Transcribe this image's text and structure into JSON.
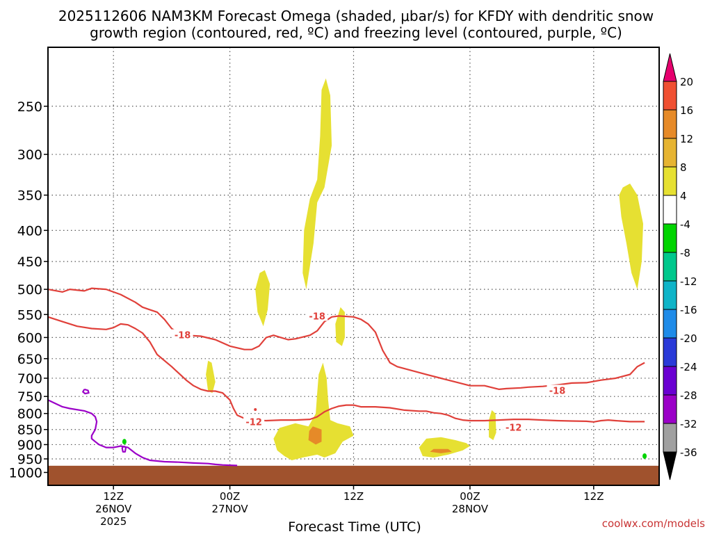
{
  "chart_data": {
    "type": "heatmap",
    "title_line1": "2025112606 NAM3KM Forecast Omega (shaded, μbar/s) for KFDY with dendritic snow",
    "title_line2": "growth region (contoured, red, ºC) and freezing level (contoured, purple, ºC)",
    "xlabel": "Forecast Time (UTC)",
    "ylabel": "",
    "x_axis": {
      "unit": "forecast hour",
      "range": [
        0,
        84
      ],
      "ticks": [
        {
          "x": 9,
          "line1": "12Z",
          "line2": "26NOV",
          "line3": "2025"
        },
        {
          "x": 25,
          "line1": "00Z",
          "line2": "27NOV",
          "line3": ""
        },
        {
          "x": 42,
          "line1": "12Z",
          "line2": "",
          "line3": ""
        },
        {
          "x": 58,
          "line1": "00Z",
          "line2": "28NOV",
          "line3": ""
        },
        {
          "x": 75,
          "line1": "12Z",
          "line2": "",
          "line3": ""
        }
      ]
    },
    "y_axis": {
      "unit": "hPa",
      "scale": "log",
      "inverted": true,
      "range": [
        1050,
        200
      ],
      "ticks": [
        250,
        300,
        350,
        400,
        450,
        500,
        550,
        600,
        650,
        700,
        750,
        800,
        850,
        900,
        950,
        1000
      ]
    },
    "colorbar": {
      "colors": [
        "#000000",
        "#a0a0a0",
        "#9b00c8",
        "#6a00d2",
        "#2a3ad8",
        "#1f8be8",
        "#0fb4c8",
        "#00c88c",
        "#00d400",
        "#ffffff",
        "#e6e032",
        "#e6b432",
        "#e68a28",
        "#f05032",
        "#e6006e"
      ],
      "labels": [
        "-36",
        "-32",
        "-28",
        "-24",
        "-20",
        "-16",
        "-12",
        "-8",
        "-4",
        "4",
        "8",
        "12",
        "16",
        "20"
      ]
    },
    "omega_regions": [
      {
        "color": "#e6e032",
        "points": [
          [
            35.5,
            500
          ],
          [
            36.5,
            420
          ],
          [
            37,
            360
          ],
          [
            38,
            340
          ],
          [
            39,
            290
          ],
          [
            38.8,
            240
          ],
          [
            38.2,
            225
          ],
          [
            37.6,
            235
          ],
          [
            37.4,
            280
          ],
          [
            37,
            330
          ],
          [
            36,
            355
          ],
          [
            35.2,
            400
          ],
          [
            35,
            470
          ]
        ]
      },
      {
        "color": "#e6e032",
        "points": [
          [
            29.8,
            465
          ],
          [
            30.5,
            490
          ],
          [
            30.2,
            540
          ],
          [
            29.6,
            575
          ],
          [
            28.8,
            545
          ],
          [
            28.5,
            500
          ],
          [
            29.1,
            470
          ]
        ]
      },
      {
        "color": "#e6e032",
        "points": [
          [
            40.2,
            535
          ],
          [
            40.8,
            545
          ],
          [
            40.8,
            600
          ],
          [
            40.4,
            620
          ],
          [
            39.6,
            610
          ],
          [
            39.5,
            570
          ]
        ]
      },
      {
        "color": "#e6e032",
        "points": [
          [
            22.5,
            660
          ],
          [
            23,
            710
          ],
          [
            22.6,
            740
          ],
          [
            22.0,
            735
          ],
          [
            21.7,
            690
          ],
          [
            22.0,
            655
          ]
        ]
      },
      {
        "color": "#e6e032",
        "points": [
          [
            37.8,
            660
          ],
          [
            38.3,
            700
          ],
          [
            38.5,
            760
          ],
          [
            38.8,
            820
          ],
          [
            39.8,
            830
          ],
          [
            41.5,
            840
          ],
          [
            42.0,
            870
          ],
          [
            40.5,
            890
          ],
          [
            39.5,
            930
          ],
          [
            38.0,
            945
          ],
          [
            37.0,
            935
          ],
          [
            35,
            945
          ],
          [
            33.5,
            955
          ],
          [
            32.5,
            940
          ],
          [
            31.5,
            920
          ],
          [
            31.0,
            880
          ],
          [
            31.8,
            845
          ],
          [
            34,
            830
          ],
          [
            35.8,
            840
          ],
          [
            36.8,
            800
          ],
          [
            37.0,
            740
          ],
          [
            37.2,
            690
          ]
        ]
      },
      {
        "color": "#e68a28",
        "points": [
          [
            36.4,
            840
          ],
          [
            37.6,
            850
          ],
          [
            37.6,
            890
          ],
          [
            36.8,
            900
          ],
          [
            35.8,
            885
          ],
          [
            35.9,
            855
          ]
        ]
      },
      {
        "color": "#e6e032",
        "points": [
          [
            52,
            880
          ],
          [
            54,
            875
          ],
          [
            56,
            885
          ],
          [
            57.5,
            895
          ],
          [
            58,
            905
          ],
          [
            57,
            920
          ],
          [
            55,
            935
          ],
          [
            53,
            945
          ],
          [
            51.5,
            940
          ],
          [
            51,
            910
          ]
        ]
      },
      {
        "color": "#e68a28",
        "points": [
          [
            53,
            915
          ],
          [
            55,
            915
          ],
          [
            55.5,
            925
          ],
          [
            54,
            930
          ],
          [
            52.5,
            925
          ]
        ]
      },
      {
        "color": "#e6e032",
        "points": [
          [
            61,
            790
          ],
          [
            61.5,
            800
          ],
          [
            61.6,
            860
          ],
          [
            61.2,
            885
          ],
          [
            60.6,
            875
          ],
          [
            60.6,
            820
          ]
        ]
      },
      {
        "color": "#e6e032",
        "points": [
          [
            79,
            340
          ],
          [
            80,
            335
          ],
          [
            81,
            350
          ],
          [
            81.8,
            390
          ],
          [
            81.6,
            450
          ],
          [
            81,
            500
          ],
          [
            80.2,
            470
          ],
          [
            79.5,
            420
          ],
          [
            78.8,
            380
          ],
          [
            78.5,
            350
          ]
        ]
      }
    ],
    "contours": [
      {
        "color": "#e0403a",
        "points": [
          [
            0,
            500
          ],
          [
            2,
            505
          ],
          [
            3,
            500
          ],
          [
            5,
            503
          ],
          [
            6,
            498
          ],
          [
            8,
            500
          ],
          [
            10,
            510
          ],
          [
            12,
            525
          ],
          [
            13,
            535
          ],
          [
            14,
            540
          ],
          [
            15,
            545
          ],
          [
            16,
            560
          ],
          [
            17,
            580
          ],
          [
            18,
            590
          ],
          [
            19,
            595
          ],
          [
            21,
            597
          ],
          [
            23,
            605
          ],
          [
            25,
            620
          ],
          [
            27,
            628
          ],
          [
            28,
            628
          ],
          [
            29,
            620
          ],
          [
            30,
            600
          ],
          [
            31,
            595
          ],
          [
            32,
            600
          ],
          [
            33,
            605
          ],
          [
            34,
            603
          ],
          [
            36,
            595
          ],
          [
            37,
            585
          ],
          [
            38,
            565
          ],
          [
            39,
            555
          ],
          [
            40,
            553
          ],
          [
            42,
            555
          ],
          [
            43,
            560
          ],
          [
            44,
            570
          ],
          [
            45,
            588
          ],
          [
            46,
            630
          ],
          [
            47,
            660
          ],
          [
            48,
            670
          ],
          [
            50,
            680
          ],
          [
            52,
            690
          ],
          [
            54,
            700
          ],
          [
            56,
            710
          ],
          [
            58,
            720
          ],
          [
            60,
            720
          ],
          [
            61,
            725
          ],
          [
            62,
            730
          ],
          [
            63,
            728
          ],
          [
            65,
            726
          ],
          [
            66,
            724
          ],
          [
            68,
            722
          ],
          [
            70,
            718
          ],
          [
            72,
            713
          ],
          [
            74,
            712
          ],
          [
            76,
            705
          ],
          [
            78,
            700
          ],
          [
            80,
            690
          ],
          [
            81,
            670
          ],
          [
            82,
            660
          ]
        ]
      },
      {
        "color": "#e0403a",
        "points": [
          [
            0,
            555
          ],
          [
            2,
            565
          ],
          [
            4,
            575
          ],
          [
            6,
            580
          ],
          [
            8,
            582
          ],
          [
            9,
            578
          ],
          [
            10,
            570
          ],
          [
            11,
            572
          ],
          [
            12,
            580
          ],
          [
            13,
            590
          ],
          [
            14,
            610
          ],
          [
            15,
            640
          ],
          [
            17,
            670
          ],
          [
            19,
            705
          ],
          [
            20,
            720
          ],
          [
            21,
            730
          ],
          [
            22,
            735
          ],
          [
            23,
            735
          ],
          [
            24,
            740
          ],
          [
            25,
            760
          ],
          [
            25.5,
            785
          ],
          [
            26,
            805
          ],
          [
            27,
            815
          ],
          [
            28,
            820
          ],
          [
            30,
            822
          ],
          [
            32,
            820
          ],
          [
            34,
            820
          ],
          [
            36,
            818
          ],
          [
            37,
            810
          ],
          [
            38,
            795
          ],
          [
            39,
            785
          ],
          [
            40,
            778
          ],
          [
            41,
            775
          ],
          [
            42,
            775
          ],
          [
            43,
            780
          ],
          [
            45,
            780
          ],
          [
            47,
            783
          ],
          [
            49,
            790
          ],
          [
            51,
            793
          ],
          [
            52,
            793
          ],
          [
            53,
            798
          ],
          [
            54,
            800
          ],
          [
            55,
            805
          ],
          [
            56,
            815
          ],
          [
            57,
            820
          ],
          [
            58,
            822
          ],
          [
            60,
            822
          ],
          [
            62,
            820
          ],
          [
            64,
            818
          ],
          [
            66,
            818
          ],
          [
            68,
            820
          ],
          [
            70,
            822
          ],
          [
            72,
            823
          ],
          [
            74,
            824
          ],
          [
            75,
            826
          ],
          [
            76,
            822
          ],
          [
            77,
            820
          ],
          [
            78,
            822
          ],
          [
            80,
            825
          ],
          [
            82,
            825
          ]
        ]
      },
      {
        "color": "#9b00c8",
        "points": [
          [
            0,
            760
          ],
          [
            1,
            770
          ],
          [
            2,
            780
          ],
          [
            3,
            785
          ],
          [
            5,
            792
          ],
          [
            6,
            800
          ],
          [
            6.5,
            810
          ],
          [
            6.7,
            825
          ],
          [
            6.5,
            850
          ],
          [
            6.0,
            870
          ],
          [
            6.0,
            880
          ],
          [
            6.5,
            890
          ],
          [
            7,
            900
          ],
          [
            8,
            910
          ],
          [
            9,
            910
          ],
          [
            10,
            905
          ],
          [
            11,
            910
          ],
          [
            12,
            930
          ],
          [
            13,
            945
          ],
          [
            14,
            955
          ],
          [
            16,
            960
          ],
          [
            18,
            962
          ],
          [
            20,
            965
          ],
          [
            22,
            967
          ],
          [
            23,
            970
          ],
          [
            24,
            972
          ],
          [
            26,
            974
          ]
        ]
      },
      {
        "color": "#9b00c8",
        "points": [
          [
            5,
            730
          ],
          [
            5.5,
            733
          ],
          [
            5.6,
            740
          ],
          [
            5.1,
            742
          ],
          [
            4.8,
            737
          ],
          [
            5,
            730
          ]
        ]
      },
      {
        "color": "#9b00c8",
        "points": [
          [
            10.4,
            905
          ],
          [
            10.7,
            910
          ],
          [
            10.6,
            925
          ],
          [
            10.3,
            925
          ],
          [
            10.2,
            912
          ],
          [
            10.4,
            905
          ]
        ]
      }
    ],
    "contour_labels": [
      {
        "text": "-18",
        "x": 18.5,
        "y": 594,
        "color": "#e0403a"
      },
      {
        "text": "-18",
        "x": 37.0,
        "y": 553,
        "color": "#e0403a"
      },
      {
        "text": "-18",
        "x": 70.0,
        "y": 733,
        "color": "#e0403a"
      },
      {
        "text": "-12",
        "x": 28.3,
        "y": 825,
        "color": "#e0403a"
      },
      {
        "text": "-12",
        "x": 64.0,
        "y": 843,
        "color": "#e0403a"
      }
    ],
    "green_marks": [
      [
        10.5,
        890
      ],
      [
        82,
        940
      ]
    ],
    "red_dots": [
      [
        28.5,
        788
      ]
    ],
    "ground_level_hPa": 975,
    "ground_color": "#a0522d",
    "grid": true
  },
  "credit": "coolwx.com/models"
}
